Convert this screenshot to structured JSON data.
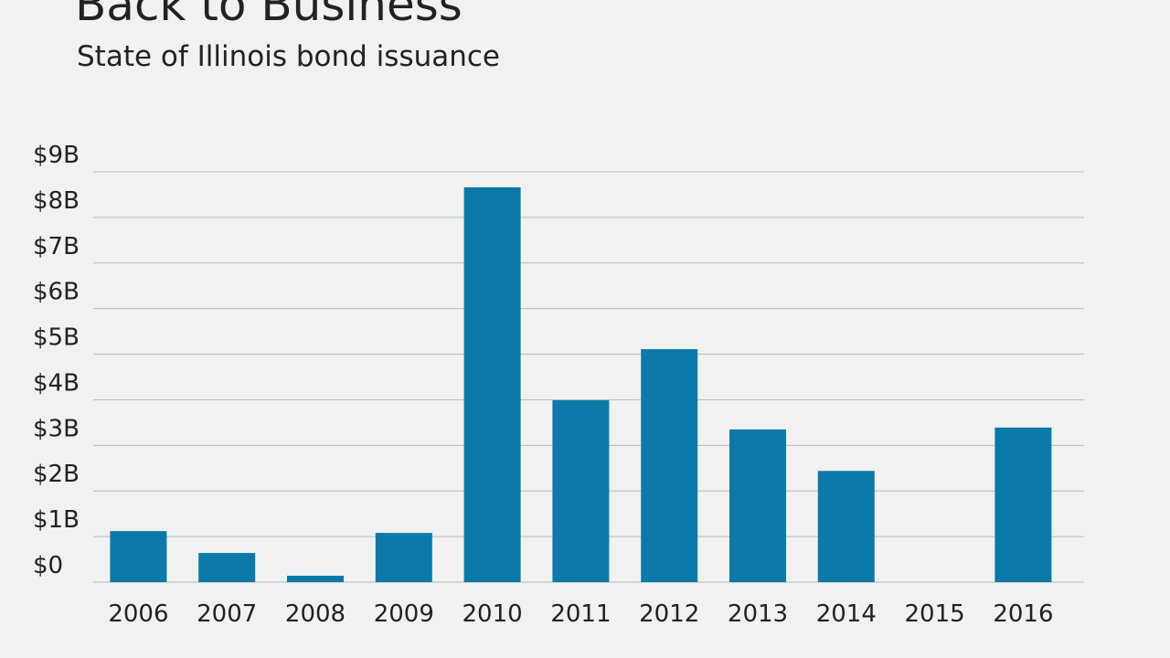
{
  "chart_data": {
    "type": "bar",
    "title": "Back to Business",
    "subtitle": "State of Illinois bond issuance",
    "categories": [
      "2006",
      "2007",
      "2008",
      "2009",
      "2010",
      "2011",
      "2012",
      "2013",
      "2014",
      "2015",
      "2016"
    ],
    "values": [
      1.12,
      0.64,
      0.14,
      1.08,
      8.66,
      3.99,
      5.11,
      3.35,
      2.44,
      0,
      3.39
    ],
    "color": "#0b7aa8",
    "ylim": [
      0,
      9
    ],
    "yticks": [
      {
        "value": 0,
        "label": "$0"
      },
      {
        "value": 1,
        "label": "$1B"
      },
      {
        "value": 2,
        "label": "$2B"
      },
      {
        "value": 3,
        "label": "$3B"
      },
      {
        "value": 4,
        "label": "$4B"
      },
      {
        "value": 5,
        "label": "$5B"
      },
      {
        "value": 6,
        "label": "$6B"
      },
      {
        "value": 7,
        "label": "$7B"
      },
      {
        "value": 8,
        "label": "$8B"
      },
      {
        "value": 9,
        "label": "$9B"
      }
    ],
    "grid": true
  }
}
